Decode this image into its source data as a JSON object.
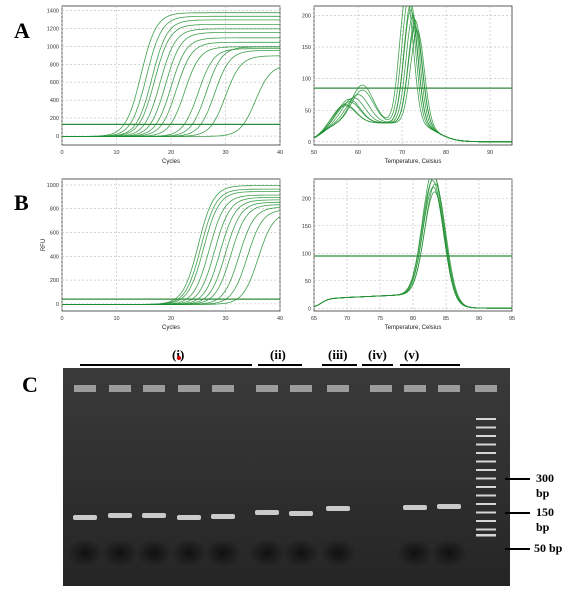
{
  "figure": {
    "panel_labels": {
      "a": "A",
      "b": "B",
      "c": "C"
    },
    "lane_groups": [
      {
        "label": "(i)",
        "label_color": "#000000",
        "marker_color": "#d00000"
      },
      {
        "label": "(ii)"
      },
      {
        "label": "(iii)"
      },
      {
        "label": "(iv)"
      },
      {
        "label": "(v)"
      }
    ],
    "ladder_sizes": [
      "300 bp",
      "150 bp",
      "50 bp"
    ],
    "colors": {
      "curve": "#1f8f2f",
      "threshold": "#2e8b3a",
      "grid": "#bbbbbb",
      "gel_bg": "#2a2a2a",
      "band": "#e6e6e6"
    }
  },
  "chart_data": [
    {
      "id": "A-amplification",
      "type": "line",
      "xlabel": "Cycles",
      "ylabel": "",
      "x_ticks": [
        0,
        10,
        20,
        30,
        40
      ],
      "y_ticks": [
        0,
        200,
        400,
        600,
        800,
        1000,
        1200,
        1400
      ],
      "xlim": [
        0,
        40
      ],
      "ylim": [
        -100,
        1450
      ],
      "threshold": 130,
      "grid": true,
      "series": [
        {
          "midpoint": 14.5,
          "plateau": 1380
        },
        {
          "midpoint": 15.5,
          "plateau": 1340
        },
        {
          "midpoint": 16.5,
          "plateau": 1300
        },
        {
          "midpoint": 17.0,
          "plateau": 1250
        },
        {
          "midpoint": 18.0,
          "plateau": 1200
        },
        {
          "midpoint": 19.0,
          "plateau": 1160
        },
        {
          "midpoint": 20.0,
          "plateau": 1100
        },
        {
          "midpoint": 21.0,
          "plateau": 1050
        },
        {
          "midpoint": 22.5,
          "plateau": 1000
        },
        {
          "midpoint": 25.0,
          "plateau": 980
        },
        {
          "midpoint": 26.5,
          "plateau": 1000
        },
        {
          "midpoint": 28.0,
          "plateau": 960
        },
        {
          "midpoint": 30.0,
          "plateau": 900
        },
        {
          "midpoint": 35.5,
          "plateau": 800
        }
      ]
    },
    {
      "id": "A-melt",
      "type": "line",
      "xlabel": "Temperature, Celsius",
      "ylabel": "",
      "x_ticks": [
        50,
        60,
        70,
        80,
        90
      ],
      "y_ticks": [
        0,
        50,
        100,
        150,
        200
      ],
      "xlim": [
        50,
        95
      ],
      "ylim": [
        -5,
        215
      ],
      "threshold": 85,
      "grid": true,
      "series": [
        {
          "peak_t": 71.0,
          "peak": 205,
          "shoulder_t": 61,
          "shoulder": 60
        },
        {
          "peak_t": 71.5,
          "peak": 198,
          "shoulder_t": 61,
          "shoulder": 52
        },
        {
          "peak_t": 72.0,
          "peak": 190,
          "shoulder_t": 60,
          "shoulder": 45
        },
        {
          "peak_t": 72.0,
          "peak": 180,
          "shoulder_t": 59,
          "shoulder": 40
        },
        {
          "peak_t": 72.5,
          "peak": 172,
          "shoulder_t": 58,
          "shoulder": 38
        },
        {
          "peak_t": 73.0,
          "peak": 165,
          "shoulder_t": 58,
          "shoulder": 34
        },
        {
          "peak_t": 73.0,
          "peak": 155,
          "shoulder_t": 57,
          "shoulder": 30
        },
        {
          "peak_t": 73.5,
          "peak": 150,
          "shoulder_t": 57,
          "shoulder": 28
        }
      ]
    },
    {
      "id": "B-amplification",
      "type": "line",
      "xlabel": "Cycles",
      "ylabel": "RFU",
      "x_ticks": [
        0,
        10,
        20,
        30,
        40
      ],
      "y_ticks": [
        0,
        200,
        400,
        600,
        800,
        1000
      ],
      "xlim": [
        0,
        40
      ],
      "ylim": [
        -60,
        1050
      ],
      "threshold": 40,
      "grid": true,
      "series": [
        {
          "midpoint": 25.0,
          "plateau": 1000
        },
        {
          "midpoint": 25.5,
          "plateau": 970
        },
        {
          "midpoint": 26.0,
          "plateau": 950
        },
        {
          "midpoint": 27.0,
          "plateau": 920
        },
        {
          "midpoint": 28.0,
          "plateau": 900
        },
        {
          "midpoint": 29.0,
          "plateau": 880
        },
        {
          "midpoint": 30.0,
          "plateau": 860
        },
        {
          "midpoint": 31.0,
          "plateau": 840
        },
        {
          "midpoint": 32.5,
          "plateau": 820
        },
        {
          "midpoint": 34.0,
          "plateau": 800
        },
        {
          "midpoint": 36.0,
          "plateau": 780
        }
      ]
    },
    {
      "id": "B-melt",
      "type": "line",
      "xlabel": "Temperature, Celsius",
      "ylabel": "",
      "x_ticks": [
        65,
        70,
        75,
        80,
        85,
        90,
        95
      ],
      "y_ticks": [
        0,
        50,
        100,
        150,
        200
      ],
      "xlim": [
        65,
        95
      ],
      "ylim": [
        -5,
        235
      ],
      "threshold": 95,
      "grid": true,
      "series": [
        {
          "peak_t": 83.0,
          "peak": 225
        },
        {
          "peak_t": 83.2,
          "peak": 218
        },
        {
          "peak_t": 83.0,
          "peak": 210
        },
        {
          "peak_t": 83.4,
          "peak": 205
        },
        {
          "peak_t": 83.1,
          "peak": 198
        },
        {
          "peak_t": 83.3,
          "peak": 190
        }
      ]
    }
  ]
}
